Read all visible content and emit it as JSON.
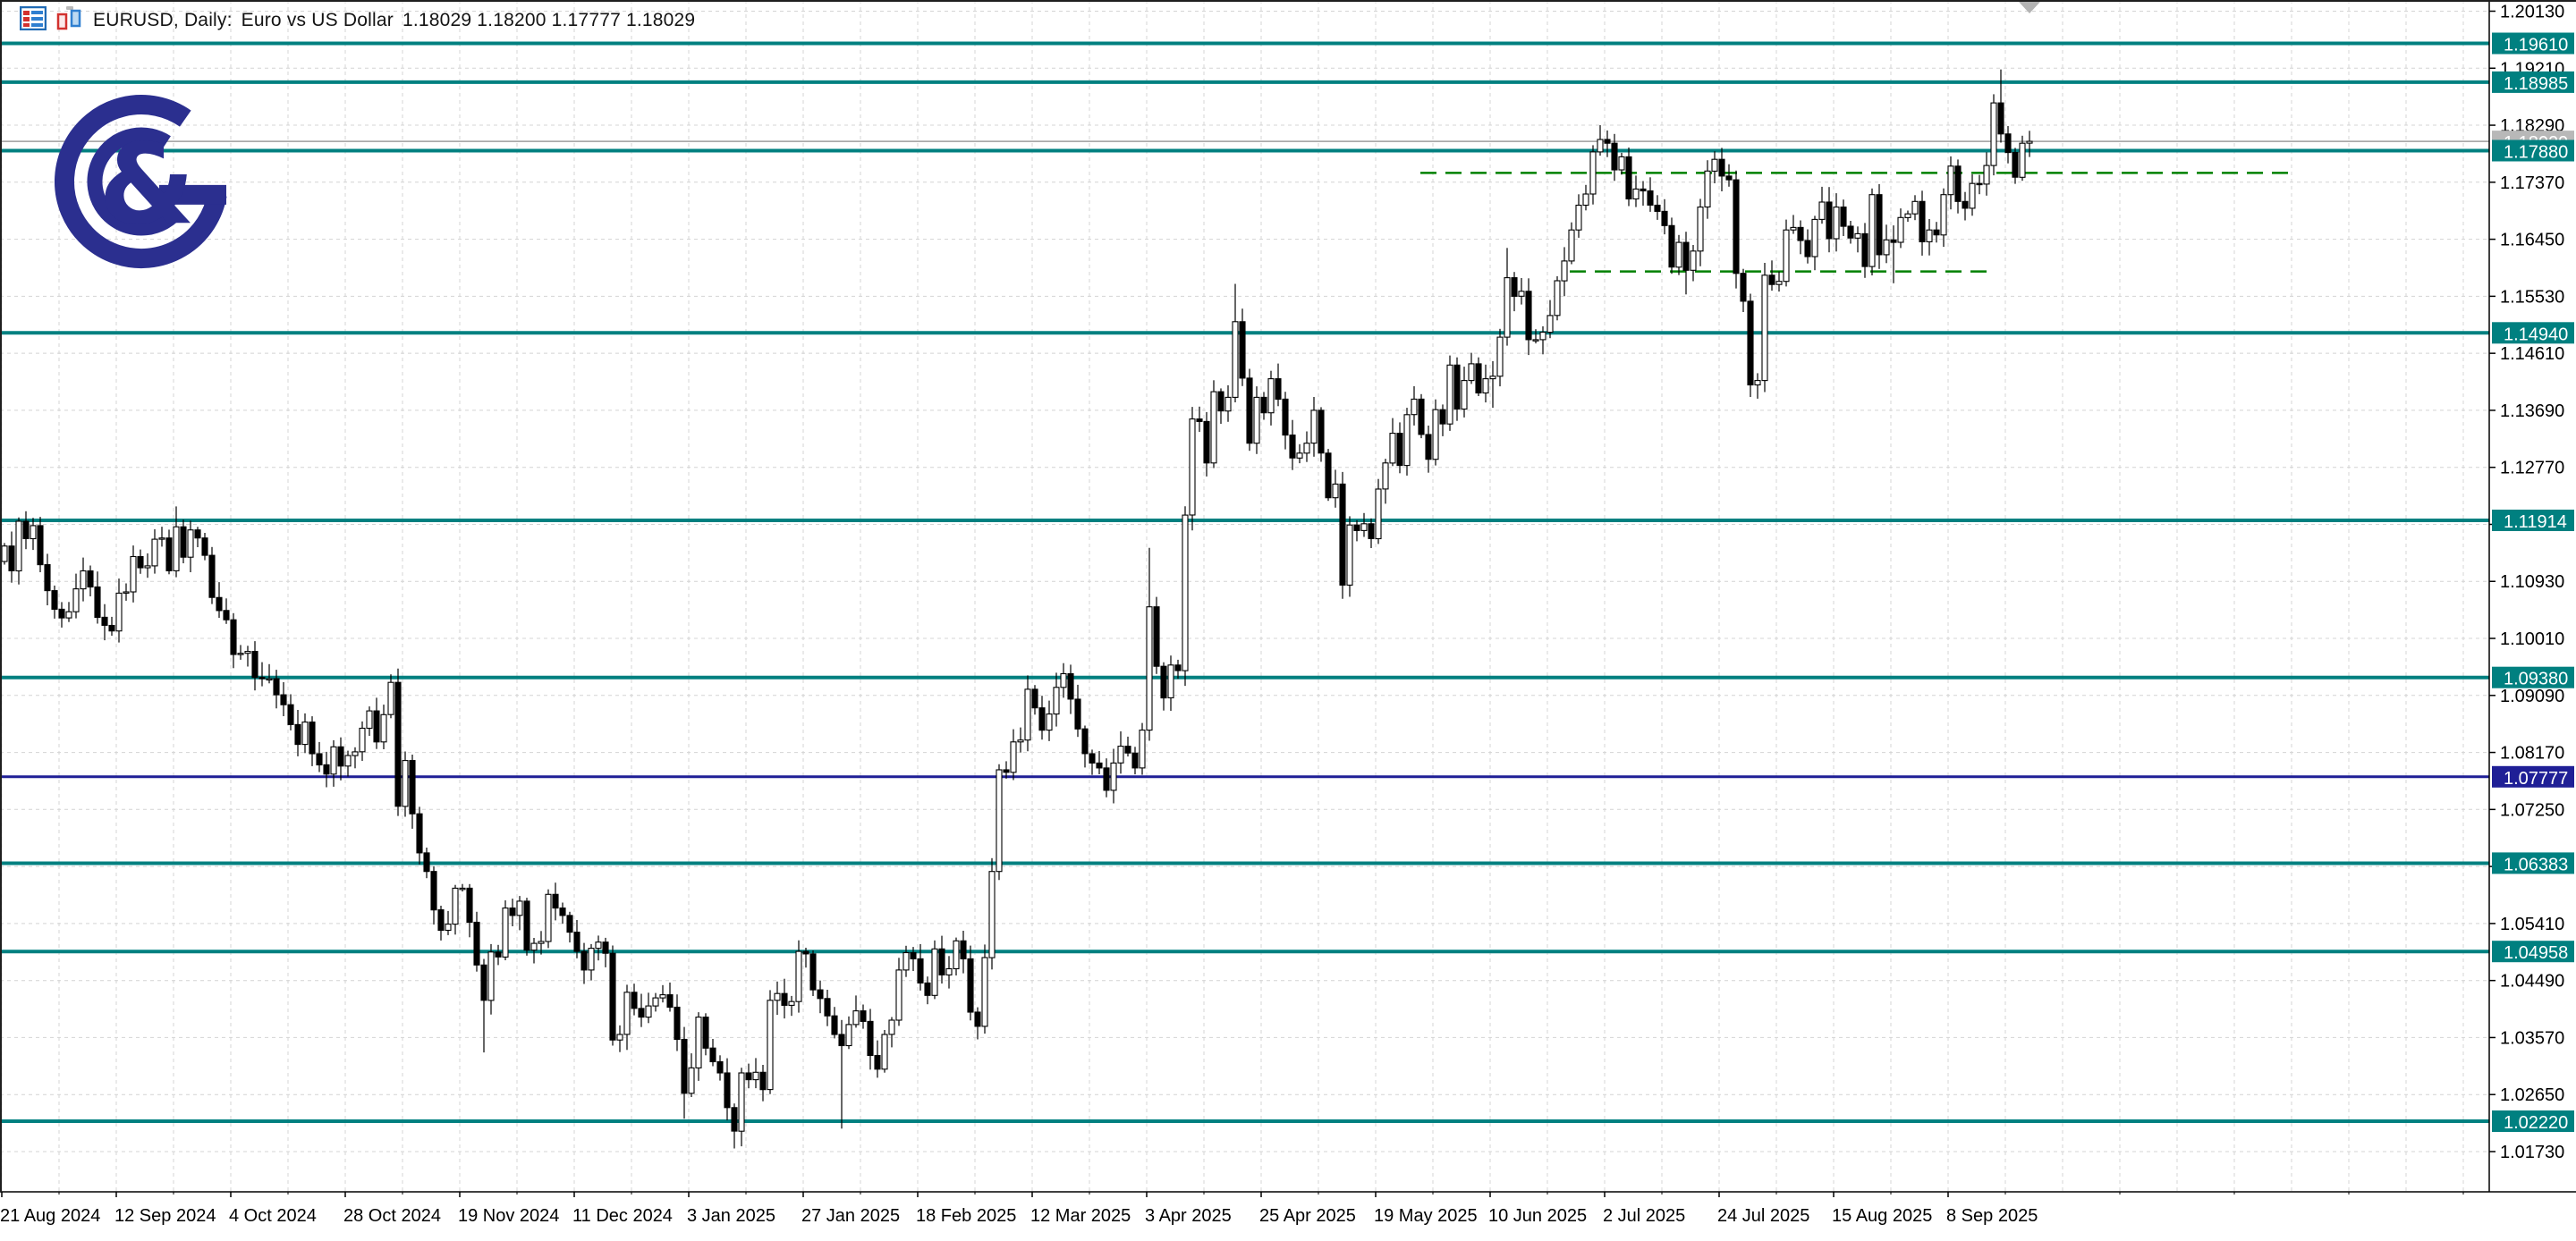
{
  "window": {
    "title_symbol": "EURUSD, Daily:",
    "title_desc": "Euro vs US Dollar",
    "title_ohlc": "1.18029 1.18200 1.17777 1.18029",
    "icons": [
      "symbol-list-icon",
      "new-chart-icon"
    ]
  },
  "logo": {
    "ampersand": "&",
    "color": "#2b2f8f"
  },
  "colors": {
    "background": "#ffffff",
    "grid": "#d4d4d4",
    "axis": "#000000",
    "teal_level": "#008080",
    "navy_level": "#1f1f96",
    "green_dashed": "#008000",
    "current_price_line": "#9e9e9e",
    "current_price_badge": "#b8b8b8",
    "candle_outline": "#000000",
    "candle_bull_fill": "#ffffff",
    "candle_bear_fill": "#000000",
    "marker_gray": "#b3b3b3",
    "border": "#1f1f1f"
  },
  "chart_data": {
    "type": "candlestick",
    "symbol": "EURUSD",
    "timeframe": "Daily",
    "title": "EURUSD, Daily: Euro vs US Dollar",
    "last_quote": {
      "open": "1.18029",
      "high": "1.18200",
      "low": "1.17777",
      "close": "1.18029"
    },
    "ylim": [
      1.0108,
      1.2031
    ],
    "grid": true,
    "y_tick_step": 0.0092,
    "y_ticks": [
      1.2013,
      1.1921,
      1.1829,
      1.1737,
      1.1645,
      1.1553,
      1.1461,
      1.1369,
      1.1277,
      1.1185,
      1.1093,
      1.1001,
      1.0909,
      1.0817,
      1.0725,
      1.0633,
      1.0541,
      1.0449,
      1.0357,
      1.0265,
      1.0173
    ],
    "y_tick_labels": [
      "1.20130",
      "1.19210",
      "1.18290",
      "1.17370",
      "1.16450",
      "1.15530",
      "1.14610",
      "1.13690",
      "1.12770",
      "1.11850",
      "1.10930",
      "1.10010",
      "1.09090",
      "1.08170",
      "1.07250",
      "1.06330",
      "1.05410",
      "1.04490",
      "1.03570",
      "1.02650",
      "1.01730"
    ],
    "x_labels": [
      "21 Aug 2024",
      "12 Sep 2024",
      "4 Oct 2024",
      "28 Oct 2024",
      "19 Nov 2024",
      "11 Dec 2024",
      "3 Jan 2025",
      "27 Jan 2025",
      "18 Feb 2025",
      "12 Mar 2025",
      "3 Apr 2025",
      "25 Apr 2025",
      "19 May 2025",
      "10 Jun 2025",
      "2 Jul 2025",
      "24 Jul 2025",
      "15 Aug 2025",
      "8 Sep 2025"
    ],
    "bars_per_label": 16,
    "first_open": 1.1125,
    "closes": [
      1.115,
      1.111,
      1.119,
      1.1162,
      1.1183,
      1.112,
      1.1078,
      1.1048,
      1.1034,
      1.1044,
      1.1081,
      1.111,
      1.1084,
      1.1035,
      1.1022,
      1.1013,
      1.1074,
      1.1076,
      1.1133,
      1.1115,
      1.1118,
      1.1161,
      1.1163,
      1.111,
      1.1181,
      1.1132,
      1.1176,
      1.1163,
      1.1135,
      1.1067,
      1.1046,
      1.1031,
      1.0975,
      1.0977,
      1.098,
      1.0938,
      1.0936,
      1.0936,
      1.091,
      1.0894,
      1.0862,
      1.083,
      1.0866,
      1.0815,
      1.0797,
      1.0782,
      1.0826,
      1.0795,
      1.0812,
      1.0818,
      1.0856,
      1.0884,
      1.0834,
      1.0878,
      1.093,
      1.073,
      1.0804,
      1.0718,
      1.0655,
      1.0625,
      1.0563,
      1.053,
      1.054,
      1.0598,
      1.0598,
      1.0543,
      1.0474,
      1.0417,
      1.0495,
      1.0487,
      1.0566,
      1.0554,
      1.0577,
      1.0498,
      1.0509,
      1.0512,
      1.0588,
      1.0566,
      1.0554,
      1.0527,
      1.0496,
      1.0466,
      1.0501,
      1.0511,
      1.0493,
      1.0353,
      1.0362,
      1.043,
      1.0404,
      1.039,
      1.0408,
      1.0421,
      1.0426,
      1.0406,
      1.0354,
      1.0267,
      1.0308,
      1.039,
      1.034,
      1.0318,
      1.03,
      1.0244,
      1.0206,
      1.03,
      1.0289,
      1.0301,
      1.0273,
      1.0417,
      1.0428,
      1.0409,
      1.0415,
      1.0496,
      1.0492,
      1.0434,
      1.042,
      1.0392,
      1.0362,
      1.0344,
      1.0378,
      1.04,
      1.0383,
      1.0328,
      1.0306,
      1.0362,
      1.0385,
      1.0466,
      1.0494,
      1.0484,
      1.0445,
      1.0425,
      1.05,
      1.0458,
      1.0468,
      1.0513,
      1.0484,
      1.0398,
      1.0375,
      1.0486,
      1.0625,
      1.0789,
      1.0785,
      1.0834,
      1.0837,
      1.0919,
      1.0889,
      1.0853,
      1.0879,
      1.0922,
      1.0944,
      1.0903,
      1.0855,
      1.0815,
      1.08,
      1.0792,
      1.0756,
      1.08,
      1.0827,
      1.0816,
      1.0792,
      1.0853,
      1.1052,
      1.0956,
      1.0905,
      1.0958,
      1.0949,
      1.12,
      1.1355,
      1.1351,
      1.1284,
      1.1399,
      1.1368,
      1.139,
      1.1512,
      1.1421,
      1.1316,
      1.139,
      1.1365,
      1.142,
      1.1387,
      1.1329,
      1.1292,
      1.13,
      1.1316,
      1.1369,
      1.13,
      1.1228,
      1.125,
      1.1087,
      1.1184,
      1.1175,
      1.1186,
      1.1162,
      1.1242,
      1.1284,
      1.1332,
      1.128,
      1.1362,
      1.1387,
      1.133,
      1.129,
      1.137,
      1.1347,
      1.1442,
      1.1371,
      1.1417,
      1.1444,
      1.1397,
      1.142,
      1.1424,
      1.1487,
      1.1583,
      1.1553,
      1.1561,
      1.1483,
      1.1483,
      1.1495,
      1.1522,
      1.1578,
      1.161,
      1.166,
      1.17,
      1.1718,
      1.1786,
      1.1806,
      1.18,
      1.1757,
      1.1778,
      1.171,
      1.1726,
      1.1723,
      1.17,
      1.169,
      1.1667,
      1.16,
      1.164,
      1.1595,
      1.1626,
      1.1697,
      1.1755,
      1.1774,
      1.1747,
      1.1741,
      1.159,
      1.1545,
      1.141,
      1.1417,
      1.1587,
      1.1572,
      1.1577,
      1.166,
      1.1664,
      1.1643,
      1.1617,
      1.1677,
      1.1705,
      1.1646,
      1.1697,
      1.1666,
      1.1647,
      1.1654,
      1.1601,
      1.1717,
      1.162,
      1.1644,
      1.164,
      1.168,
      1.1686,
      1.1706,
      1.1641,
      1.166,
      1.1652,
      1.1717,
      1.1763,
      1.1706,
      1.1695,
      1.1735,
      1.1734,
      1.1764,
      1.1865,
      1.1815,
      1.1785,
      1.1745,
      1.18,
      1.18029
    ],
    "wick_overrides": {
      "14": {
        "l": 1.1002
      },
      "24": {
        "h": 1.1214
      },
      "45": {
        "l": 1.0761
      },
      "55": {
        "h": 1.0937
      },
      "67": {
        "l": 1.0333
      },
      "85": {
        "l": 1.0344
      },
      "95": {
        "l": 1.0226
      },
      "102": {
        "l": 1.0178
      },
      "117": {
        "l": 1.021
      },
      "136": {
        "l": 1.0359
      },
      "148": {
        "h": 1.0954
      },
      "160": {
        "h": 1.1147
      },
      "172": {
        "h": 1.1573
      },
      "187": {
        "l": 1.1065
      },
      "208": {
        "l": 1.1373
      },
      "210": {
        "h": 1.1631
      },
      "223": {
        "h": 1.1829
      },
      "235": {
        "l": 1.1556
      },
      "244": {
        "l": 1.1392
      },
      "260": {
        "l": 1.1583
      },
      "261": {
        "h": 1.1727
      },
      "264": {
        "l": 1.1574
      },
      "278": {
        "h": 1.1879
      },
      "279": {
        "h": 1.1919
      },
      "283": {
        "h": 1.182,
        "l": 1.17777
      }
    },
    "levels": {
      "teal": [
        {
          "price": 1.1961,
          "label": "1.19610"
        },
        {
          "price": 1.18985,
          "label": "1.18985"
        },
        {
          "price": 1.1788,
          "label": "1.17880"
        },
        {
          "price": 1.1494,
          "label": "1.14940"
        },
        {
          "price": 1.11914,
          "label": "1.11914"
        },
        {
          "price": 1.0938,
          "label": "1.09380"
        },
        {
          "price": 1.06383,
          "label": "1.06383"
        },
        {
          "price": 1.04958,
          "label": "1.04958"
        },
        {
          "price": 1.0222,
          "label": "1.02220"
        }
      ],
      "navy": {
        "price": 1.07777,
        "label": "1.07777"
      },
      "current": {
        "price": 1.18029,
        "label": "1.18029"
      },
      "dashed_green": [
        {
          "price": 1.1752,
          "x1": 1588,
          "x2": 2565
        },
        {
          "price": 1.1593,
          "x1": 1755,
          "x2": 2225
        }
      ]
    },
    "legend_position": "none"
  }
}
